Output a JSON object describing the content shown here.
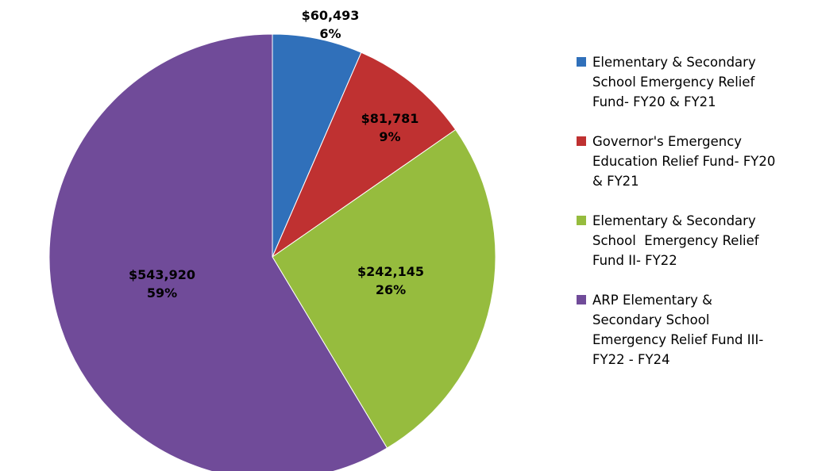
{
  "chart_data": {
    "type": "pie",
    "title": "",
    "slices": [
      {
        "name": "Elementary & Secondary School Emergency Relief Fund- FY20 & FY21",
        "value": 60493,
        "value_label": "$60,493",
        "percent_label": "6%",
        "color": "#3070BA"
      },
      {
        "name": "Governor's Emergency Education Relief Fund- FY20 & FY21",
        "value": 81781,
        "value_label": "$81,781",
        "percent_label": "9%",
        "color": "#BF3131"
      },
      {
        "name": "Elementary & Secondary School Emergency Relief Fund II- FY22",
        "value": 242145,
        "value_label": "$242,145",
        "percent_label": "26%",
        "color": "#96BC3E"
      },
      {
        "name": "ARP Elementary & Secondary School Emergency Relief Fund III- FY22 - FY24",
        "value": 543920,
        "value_label": "$543,920",
        "percent_label": "59%",
        "color": "#704B99"
      }
    ],
    "legend_position": "right"
  },
  "legend": {
    "items": [
      {
        "lines": [
          "Elementary & Secondary",
          "School Emergency Relief",
          "Fund- FY20 & FY21"
        ]
      },
      {
        "lines": [
          "Governor's Emergency",
          "Education Relief Fund- FY20",
          "& FY21"
        ]
      },
      {
        "lines": [
          "Elementary & Secondary",
          "School  Emergency Relief",
          "Fund II- FY22"
        ]
      },
      {
        "lines": [
          "ARP Elementary &",
          "Secondary School",
          "Emergency Relief Fund III-",
          "FY22 - FY24"
        ]
      }
    ]
  }
}
